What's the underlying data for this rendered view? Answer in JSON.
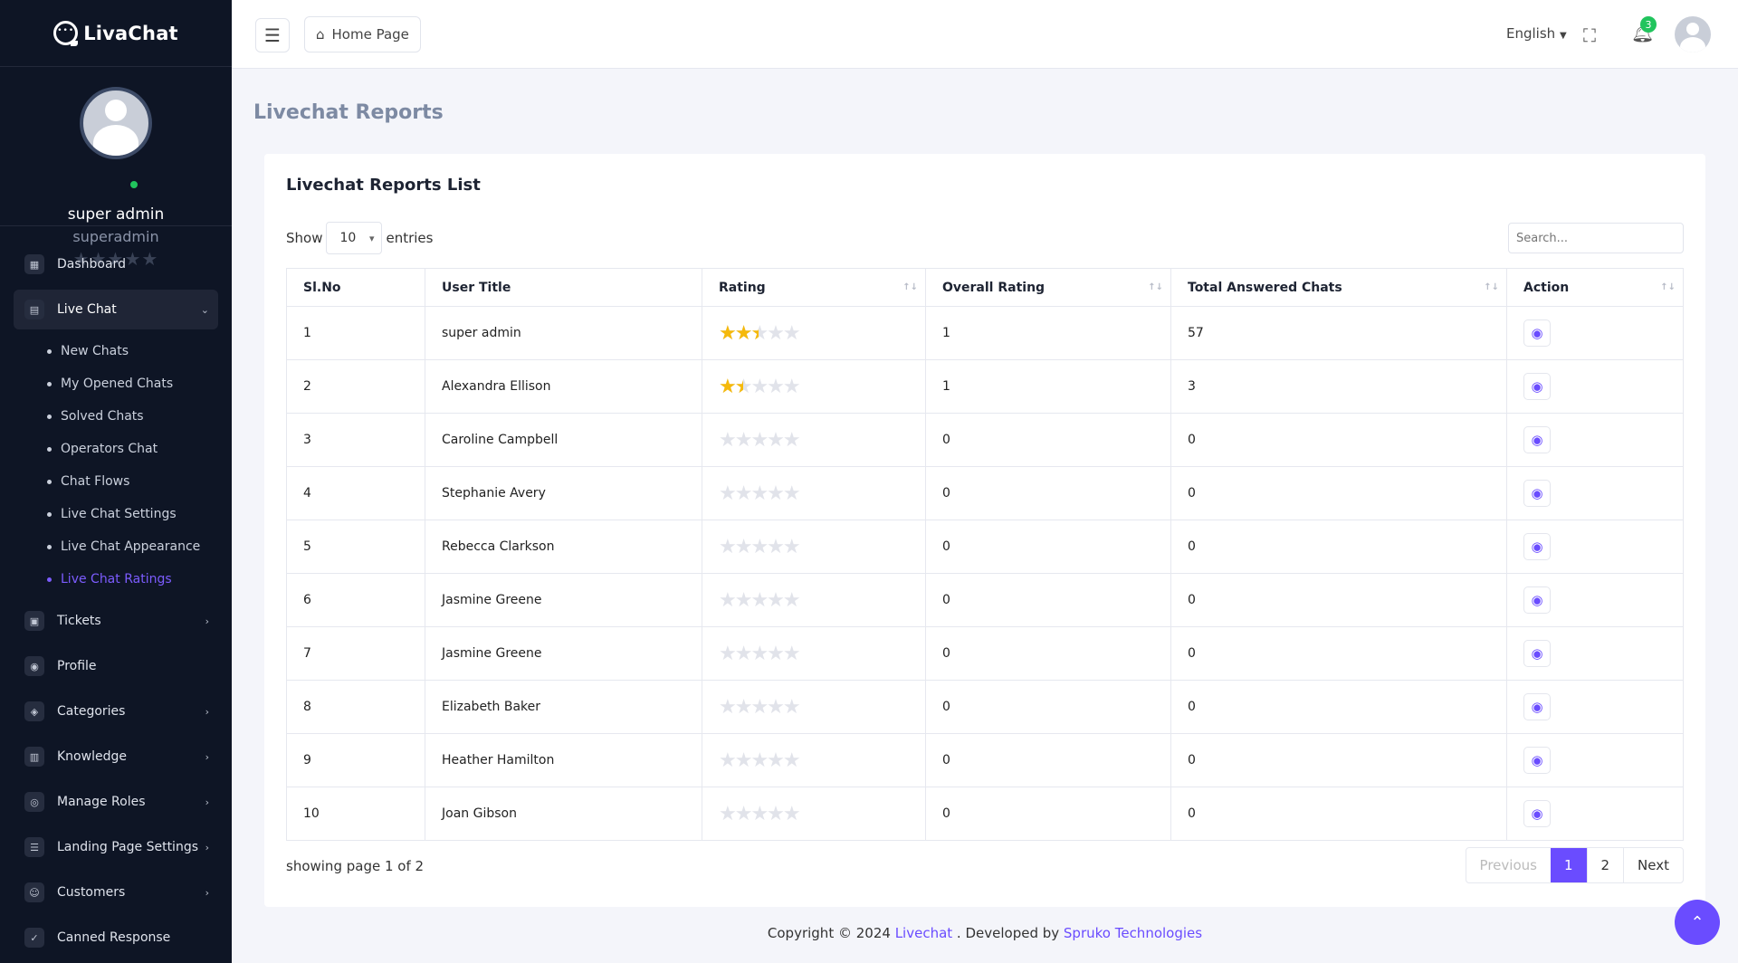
{
  "brand": {
    "name": "LivaChat"
  },
  "profile": {
    "name": "super admin",
    "role": "superadmin",
    "stars": "★★★★★"
  },
  "nav": {
    "items": [
      {
        "label": "Dashboard",
        "icon": "dashboard-icon"
      },
      {
        "label": "Live Chat",
        "icon": "chat-icon"
      },
      {
        "label": "Tickets",
        "icon": "ticket-icon"
      },
      {
        "label": "Profile",
        "icon": "user-icon"
      },
      {
        "label": "Categories",
        "icon": "categories-icon"
      },
      {
        "label": "Knowledge",
        "icon": "knowledge-icon"
      },
      {
        "label": "Manage Roles",
        "icon": "roles-icon"
      },
      {
        "label": "Landing Page Settings",
        "icon": "settings-icon"
      },
      {
        "label": "Customers",
        "icon": "customers-icon"
      },
      {
        "label": "Canned Response",
        "icon": "canned-icon"
      }
    ],
    "livechat_sub": [
      "New Chats",
      "My Opened Chats",
      "Solved Chats",
      "Operators Chat",
      "Chat Flows",
      "Live Chat Settings",
      "Live Chat Appearance",
      "Live Chat Ratings"
    ]
  },
  "topbar": {
    "home": "Home Page",
    "language": "English",
    "notification_count": "3"
  },
  "page": {
    "title": "Livechat Reports",
    "card_title": "Livechat Reports List"
  },
  "table_controls": {
    "show": "Show",
    "entries_value": "10",
    "entries": "entries",
    "search_placeholder": "Search..."
  },
  "table": {
    "headers": [
      "Sl.No",
      "User Title",
      "Rating",
      "Overall Rating",
      "Total Answered Chats",
      "Action"
    ],
    "rows": [
      {
        "no": "1",
        "user": "super admin",
        "rating": 2.5,
        "overall": "1",
        "answered": "57"
      },
      {
        "no": "2",
        "user": "Alexandra Ellison",
        "rating": 1.5,
        "overall": "1",
        "answered": "3"
      },
      {
        "no": "3",
        "user": "Caroline Campbell",
        "rating": 0,
        "overall": "0",
        "answered": "0"
      },
      {
        "no": "4",
        "user": "Stephanie Avery",
        "rating": 0,
        "overall": "0",
        "answered": "0"
      },
      {
        "no": "5",
        "user": "Rebecca Clarkson",
        "rating": 0,
        "overall": "0",
        "answered": "0"
      },
      {
        "no": "6",
        "user": "Jasmine Greene",
        "rating": 0,
        "overall": "0",
        "answered": "0"
      },
      {
        "no": "7",
        "user": "Jasmine Greene",
        "rating": 0,
        "overall": "0",
        "answered": "0"
      },
      {
        "no": "8",
        "user": "Elizabeth Baker",
        "rating": 0,
        "overall": "0",
        "answered": "0"
      },
      {
        "no": "9",
        "user": "Heather Hamilton",
        "rating": 0,
        "overall": "0",
        "answered": "0"
      },
      {
        "no": "10",
        "user": "Joan Gibson",
        "rating": 0,
        "overall": "0",
        "answered": "0"
      }
    ]
  },
  "pagination": {
    "showing": "showing page 1 of 2",
    "previous": "Previous",
    "pages": [
      "1",
      "2"
    ],
    "next": "Next"
  },
  "footer": {
    "prefix": "Copyright © 2024 ",
    "brand": "Livechat",
    "middle": " . Developed by ",
    "company": "Spruko Technologies"
  },
  "colors": {
    "accent": "#6a4cff",
    "star": "#f5b90b",
    "sidebar": "#0e1525"
  }
}
